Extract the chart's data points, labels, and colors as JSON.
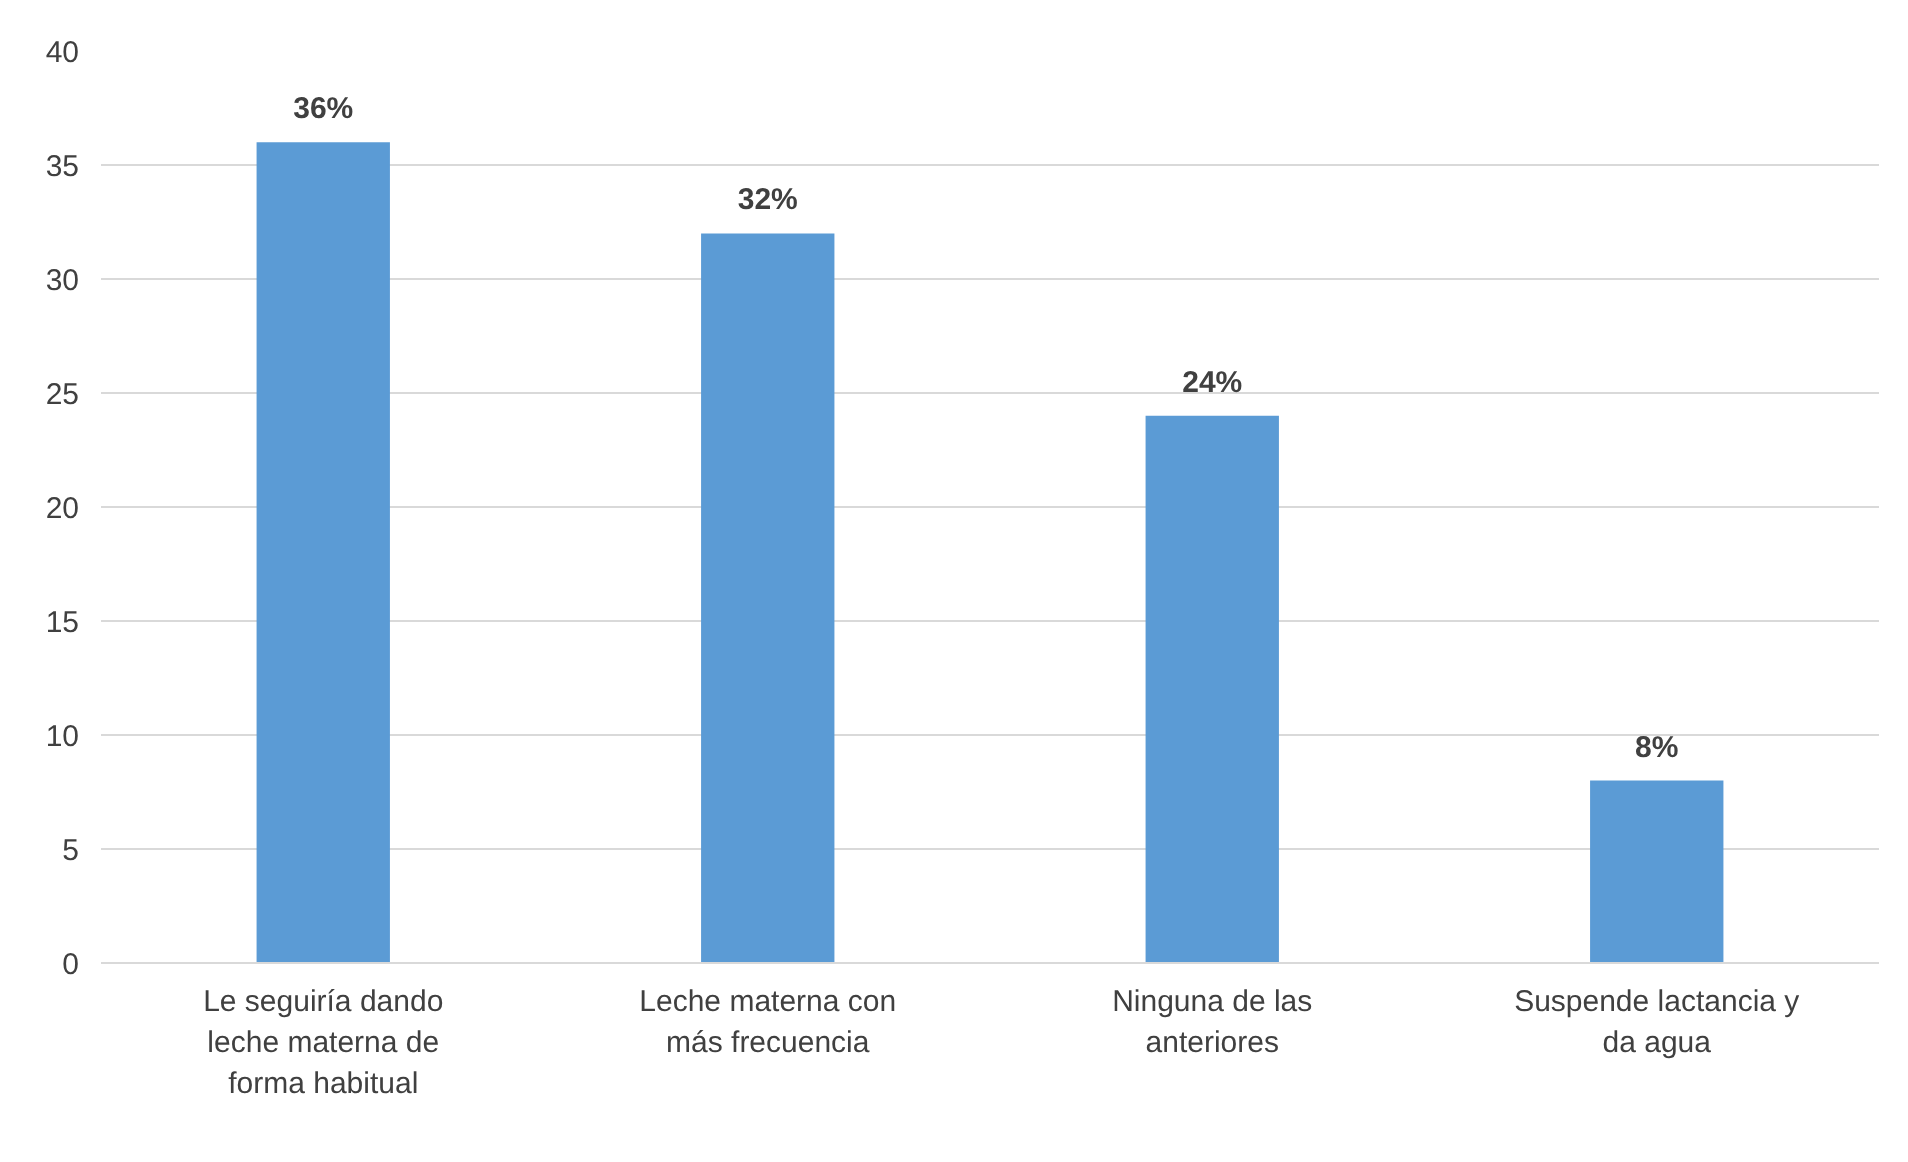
{
  "chart_data": {
    "type": "bar",
    "categories": [
      "Le seguiría dando leche materna de forma habitual",
      "Leche materna con más frecuencia",
      "Ninguna de las anteriores",
      "Suspende lactancia y da agua"
    ],
    "values": [
      36,
      32,
      24,
      8
    ],
    "value_labels": [
      "36%",
      "32%",
      "24%",
      "8%"
    ],
    "color": "#5b9bd5",
    "ylim": [
      0,
      40
    ],
    "yticks": [
      0,
      5,
      10,
      15,
      20,
      25,
      30,
      35,
      40
    ],
    "grid": "y"
  }
}
